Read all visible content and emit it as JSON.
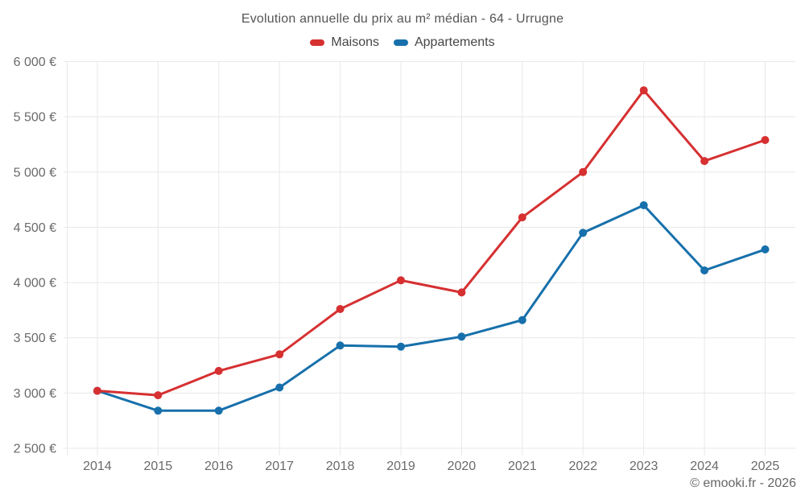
{
  "header": {
    "title": "Evolution annuelle du prix au m² médian - 64 - Urrugne"
  },
  "footer": {
    "credit": "© emooki.fr - 2026"
  },
  "colors": {
    "maisons": "#d63031",
    "appartements": "#1770ab",
    "grid": "#e8e8e8",
    "axis_text": "#6a6a6a",
    "title_text": "#555555"
  },
  "chart_data": {
    "type": "line",
    "title": "Evolution annuelle du prix au m² médian - 64 - Urrugne",
    "x": [
      "2014",
      "2015",
      "2016",
      "2017",
      "2018",
      "2019",
      "2020",
      "2021",
      "2022",
      "2023",
      "2024",
      "2025"
    ],
    "series": [
      {
        "name": "Maisons",
        "color": "#d63031",
        "values": [
          3020,
          2980,
          3200,
          3350,
          3760,
          4020,
          3910,
          4590,
          5000,
          5740,
          5100,
          5290
        ]
      },
      {
        "name": "Appartements",
        "color": "#1770ab",
        "values": [
          3020,
          2840,
          2840,
          3050,
          3430,
          3420,
          3510,
          3660,
          4450,
          4700,
          4110,
          4300
        ]
      }
    ],
    "ylim": [
      2500,
      6000
    ],
    "y_ticks": [
      2500,
      3000,
      3500,
      4000,
      4500,
      5000,
      5500,
      6000
    ],
    "y_tick_labels": [
      "2 500 €",
      "3 000 €",
      "3 500 €",
      "4 000 €",
      "4 500 €",
      "5 000 €",
      "5 500 €",
      "6 000 €"
    ],
    "grid": true,
    "legend_position": "top",
    "point_radius": 5,
    "line_width": 3
  }
}
